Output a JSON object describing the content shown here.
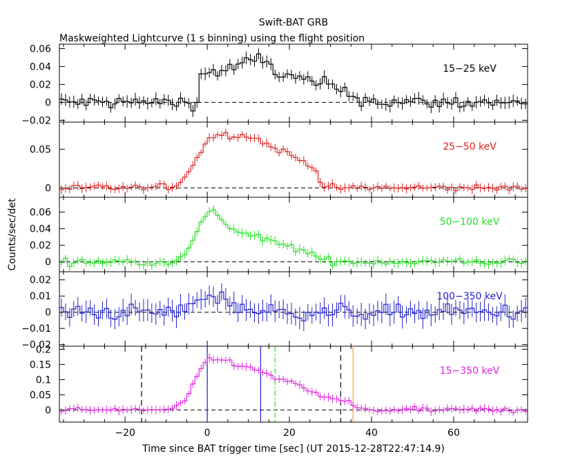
{
  "title": "Swift-BAT GRB",
  "subtitle": "Maskweighted Lightcurve (1 s binning) using the flight position",
  "ylabel": "Counts/sec/det",
  "xlabel": "Time since BAT trigger time [sec] (UT 2015-12-28T22:47:14.9)",
  "colors": {
    "black": "#000000",
    "red": "#e02020",
    "green": "#20e020",
    "blue": "#2020d0",
    "magenta": "#e020e0",
    "orange": "#f0a030"
  },
  "chart_data": {
    "type": "line",
    "x_range": [
      -36,
      78
    ],
    "x_ticks": [
      -20,
      0,
      20,
      40,
      60
    ],
    "x_tick_labels": [
      "−20",
      "0",
      "20",
      "40",
      "60"
    ],
    "grid": false,
    "panels": [
      {
        "name": "15-25 keV",
        "label": "15−25 keV",
        "color": "black",
        "ylim": [
          -0.022,
          0.065
        ],
        "y_ticks": [
          -0.02,
          0,
          0.02,
          0.04,
          0.06
        ],
        "y_tick_labels": [
          "−0.02",
          "0",
          "0.02",
          "0.04",
          "0.06"
        ],
        "bumps": [
          [
            -2,
            0.03,
            0,
            6
          ],
          [
            6,
            0.038,
            0,
            8
          ],
          [
            13,
            0.05,
            0,
            2.5
          ],
          [
            18,
            0.03,
            0,
            7
          ],
          [
            26,
            0.022,
            0,
            9
          ]
        ],
        "noise": 0.007,
        "err": 0.006
      },
      {
        "name": "25-50 keV",
        "label": "25−50 keV",
        "color": "red",
        "ylim": [
          -0.012,
          0.085
        ],
        "y_ticks": [
          0,
          0.05
        ],
        "y_tick_labels": [
          "0",
          "0.05"
        ],
        "bumps": [
          [
            2,
            0.068,
            6,
            5
          ],
          [
            10,
            0.068,
            0,
            0
          ],
          [
            14,
            0.058,
            0,
            0
          ],
          [
            18,
            0.048,
            0,
            0
          ],
          [
            22,
            0.038,
            0,
            0
          ],
          [
            25,
            0.03,
            0,
            2.5
          ]
        ],
        "noise": 0.004,
        "err": 0.005
      },
      {
        "name": "50-100 keV",
        "label": "50−100 keV",
        "color": "green",
        "ylim": [
          -0.012,
          0.078
        ],
        "y_ticks": [
          0,
          0.02,
          0.04,
          0.06
        ],
        "y_tick_labels": [
          "0",
          "0.02",
          "0.04",
          "0.06"
        ],
        "bumps": [
          [
            1.5,
            0.065,
            5,
            3
          ],
          [
            5,
            0.04,
            0,
            10
          ],
          [
            20,
            0.018,
            0,
            6
          ]
        ],
        "noise": 0.004,
        "err": 0.005
      },
      {
        "name": "100-350 keV",
        "label": "100−350 keV",
        "color": "blue",
        "ylim": [
          -0.021,
          0.025
        ],
        "y_ticks": [
          -0.02,
          -0.01,
          0,
          0.01,
          0.02
        ],
        "y_tick_labels": [
          "−0.02",
          "−0.01",
          "0",
          "0.01",
          "0.02"
        ],
        "bumps": [
          [
            0,
            0.01,
            4,
            8
          ]
        ],
        "noise": 0.0045,
        "err": 0.006
      },
      {
        "name": "15-350 keV",
        "label": "15−350 keV",
        "color": "magenta",
        "ylim": [
          -0.04,
          0.21
        ],
        "y_ticks": [
          0,
          0.05,
          0.1,
          0.15,
          0.2
        ],
        "y_tick_labels": [
          "0",
          "0.05",
          "0.1",
          "0.15",
          "0.2"
        ],
        "bumps": [
          [
            1,
            0.17,
            5,
            3
          ],
          [
            5,
            0.16,
            0,
            0
          ],
          [
            12,
            0.13,
            0,
            0
          ],
          [
            16,
            0.11,
            0,
            0
          ],
          [
            22,
            0.08,
            0,
            0
          ],
          [
            27,
            0.05,
            0,
            0
          ],
          [
            33,
            0.03,
            0,
            3
          ]
        ],
        "noise": 0.008,
        "err": 0.012,
        "vlines": [
          {
            "x": -16,
            "color": "black",
            "style": "dashed"
          },
          {
            "x": 32.5,
            "color": "black",
            "style": "dashed"
          },
          {
            "x": 0,
            "color": "green",
            "style": "dashdot"
          },
          {
            "x": 16.5,
            "color": "green",
            "style": "dashdot"
          },
          {
            "x": 0,
            "color": "blue",
            "style": "solid"
          },
          {
            "x": 13,
            "color": "blue",
            "style": "solid"
          },
          {
            "x": 35.5,
            "color": "orange",
            "style": "solid"
          }
        ]
      }
    ]
  }
}
